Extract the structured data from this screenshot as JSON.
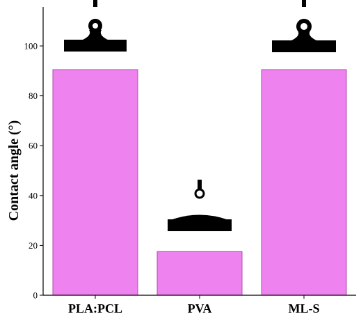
{
  "chart_data": {
    "type": "bar",
    "categories": [
      "PLA:PCL",
      "PVA",
      "ML-S"
    ],
    "values": [
      90.5,
      17.5,
      90.5
    ],
    "xlabel": "",
    "ylabel": "Contact angle (°)",
    "ylim": [
      0,
      100
    ],
    "yticks": [
      0,
      20,
      40,
      60,
      80,
      100
    ],
    "grid": false,
    "legend": "none",
    "bar_color": "#ee82ee",
    "bar_edge_color": "#b04cb0"
  }
}
